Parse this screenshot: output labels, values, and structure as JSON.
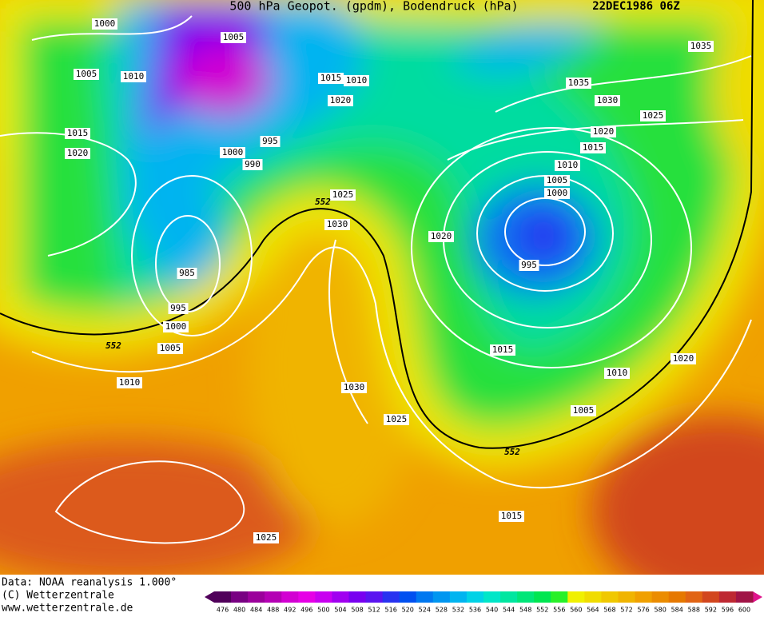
{
  "header": {
    "title": "500 hPa Geopot. (gpdm), Bodendruck (hPa)",
    "date": "22DEC1986 06Z"
  },
  "map": {
    "labels": [
      "1000",
      "1005",
      "1010",
      "1005",
      "1015",
      "1020",
      "1015",
      "1010",
      "1020",
      "995",
      "1000",
      "990",
      "1025",
      "552",
      "1030",
      "985",
      "995",
      "1000",
      "1005",
      "552",
      "1010",
      "1030",
      "1025",
      "1035",
      "1035",
      "1030",
      "1025",
      "1020",
      "1015",
      "1010",
      "1005",
      "1000",
      "1020",
      "995",
      "1015",
      "1010",
      "1020",
      "1005",
      "552",
      "1015",
      "1025"
    ]
  },
  "footer": {
    "lines": [
      "Data: NOAA reanalysis 1.000°",
      "(C) Wetterzentrale",
      "www.wetterzentrale.de"
    ]
  },
  "colorbar": {
    "labels": [
      476,
      480,
      484,
      488,
      492,
      496,
      500,
      504,
      508,
      512,
      516,
      520,
      524,
      528,
      532,
      536,
      540,
      544,
      548,
      552,
      556,
      560,
      564,
      568,
      572,
      576,
      580,
      584,
      588,
      592,
      596,
      600
    ],
    "colors": [
      "#50005a",
      "#780082",
      "#9b009b",
      "#b400b4",
      "#d200d2",
      "#e600e6",
      "#c800f0",
      "#a000f0",
      "#7800f0",
      "#5a14f0",
      "#2832f0",
      "#0050f0",
      "#0078f0",
      "#0096f0",
      "#00b4f0",
      "#00d2e6",
      "#00e6c8",
      "#00e6a0",
      "#00e678",
      "#00e650",
      "#28f028",
      "#f0f000",
      "#f0dc00",
      "#f0c800",
      "#f0b400",
      "#f0a000",
      "#eb8c00",
      "#e67800",
      "#e16414",
      "#d2461e",
      "#be2832",
      "#a01446"
    ]
  }
}
